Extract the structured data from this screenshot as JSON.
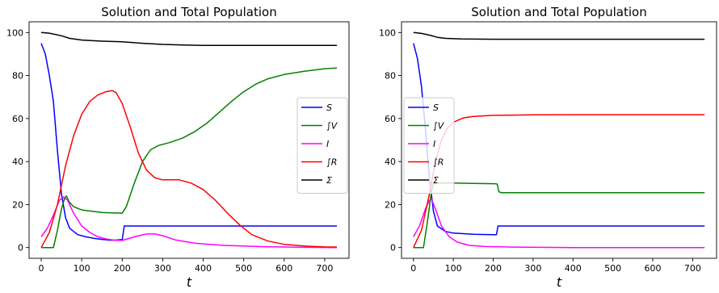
{
  "chart_data": [
    {
      "type": "line",
      "title": "Solution and Total Population",
      "xlabel": "t",
      "ylabel": "",
      "xlim": [
        -30,
        760
      ],
      "ylim": [
        -5,
        105
      ],
      "xticks": [
        0,
        100,
        200,
        300,
        400,
        500,
        600,
        700
      ],
      "yticks": [
        0,
        20,
        40,
        60,
        80,
        100
      ],
      "legend": "center-right",
      "series": [
        {
          "name": "S",
          "color": "#0000ff",
          "points": [
            [
              0,
              95
            ],
            [
              10,
              90
            ],
            [
              20,
              80
            ],
            [
              30,
              68
            ],
            [
              40,
              45
            ],
            [
              50,
              25
            ],
            [
              60,
              14
            ],
            [
              70,
              9
            ],
            [
              90,
              6
            ],
            [
              110,
              5
            ],
            [
              130,
              4.3
            ],
            [
              150,
              3.8
            ],
            [
              170,
              3.4
            ],
            [
              185,
              3.5
            ],
            [
              200,
              3.7
            ],
            [
              205,
              10
            ],
            [
              260,
              10
            ],
            [
              400,
              10
            ],
            [
              600,
              10
            ],
            [
              730,
              10
            ]
          ]
        },
        {
          "name": "∫V",
          "color": "#008000",
          "points": [
            [
              0,
              0
            ],
            [
              30,
              0
            ],
            [
              40,
              8
            ],
            [
              50,
              18
            ],
            [
              58,
              23
            ],
            [
              62,
              24
            ],
            [
              70,
              21
            ],
            [
              80,
              19
            ],
            [
              100,
              17.5
            ],
            [
              150,
              16.3
            ],
            [
              200,
              16
            ],
            [
              210,
              19
            ],
            [
              230,
              30
            ],
            [
              250,
              40
            ],
            [
              270,
              45.5
            ],
            [
              290,
              47.5
            ],
            [
              320,
              49
            ],
            [
              350,
              51
            ],
            [
              380,
              54
            ],
            [
              410,
              58
            ],
            [
              440,
              63
            ],
            [
              470,
              68
            ],
            [
              500,
              72.5
            ],
            [
              530,
              76
            ],
            [
              560,
              78.5
            ],
            [
              600,
              80.5
            ],
            [
              650,
              82
            ],
            [
              700,
              83.2
            ],
            [
              730,
              83.5
            ]
          ]
        },
        {
          "name": "I",
          "color": "#ff00ff",
          "points": [
            [
              0,
              5
            ],
            [
              15,
              9
            ],
            [
              30,
              15
            ],
            [
              45,
              22
            ],
            [
              55,
              23.5
            ],
            [
              65,
              22
            ],
            [
              80,
              16
            ],
            [
              100,
              10
            ],
            [
              120,
              7
            ],
            [
              140,
              5
            ],
            [
              160,
              4
            ],
            [
              180,
              3.4
            ],
            [
              200,
              3.3
            ],
            [
              230,
              5
            ],
            [
              260,
              6.3
            ],
            [
              280,
              6.3
            ],
            [
              300,
              5.5
            ],
            [
              330,
              3.6
            ],
            [
              380,
              2
            ],
            [
              450,
              1
            ],
            [
              550,
              0.4
            ],
            [
              650,
              0.1
            ],
            [
              730,
              0
            ]
          ]
        },
        {
          "name": "∫R",
          "color": "#ff0000",
          "points": [
            [
              0,
              0
            ],
            [
              20,
              7
            ],
            [
              40,
              20
            ],
            [
              60,
              38
            ],
            [
              80,
              52
            ],
            [
              100,
              62
            ],
            [
              120,
              68
            ],
            [
              140,
              71
            ],
            [
              160,
              72.5
            ],
            [
              175,
              73
            ],
            [
              185,
              72
            ],
            [
              200,
              67
            ],
            [
              220,
              56
            ],
            [
              240,
              44
            ],
            [
              260,
              36
            ],
            [
              280,
              32.5
            ],
            [
              300,
              31.5
            ],
            [
              340,
              31.5
            ],
            [
              370,
              30
            ],
            [
              400,
              27
            ],
            [
              430,
              22
            ],
            [
              460,
              16
            ],
            [
              490,
              10.5
            ],
            [
              520,
              6
            ],
            [
              560,
              3
            ],
            [
              600,
              1.5
            ],
            [
              650,
              0.7
            ],
            [
              700,
              0.3
            ],
            [
              730,
              0.2
            ]
          ]
        },
        {
          "name": "Σ",
          "color": "#000000",
          "points": [
            [
              0,
              100
            ],
            [
              20,
              99.7
            ],
            [
              50,
              98.5
            ],
            [
              70,
              97.3
            ],
            [
              100,
              96.5
            ],
            [
              150,
              96
            ],
            [
              200,
              95.7
            ],
            [
              250,
              95
            ],
            [
              300,
              94.5
            ],
            [
              350,
              94.2
            ],
            [
              400,
              94
            ],
            [
              500,
              94
            ],
            [
              600,
              94
            ],
            [
              730,
              94
            ]
          ]
        }
      ]
    },
    {
      "type": "line",
      "title": "Solution and Total Population",
      "xlabel": "t",
      "ylabel": "",
      "xlim": [
        -30,
        760
      ],
      "ylim": [
        -5,
        105
      ],
      "xticks": [
        0,
        100,
        200,
        300,
        400,
        500,
        600,
        700
      ],
      "yticks": [
        0,
        20,
        40,
        60,
        80,
        100
      ],
      "legend": "center-left",
      "series": [
        {
          "name": "S",
          "color": "#0000ff",
          "points": [
            [
              0,
              95
            ],
            [
              10,
              88
            ],
            [
              20,
              75
            ],
            [
              30,
              55
            ],
            [
              40,
              32
            ],
            [
              50,
              17
            ],
            [
              60,
              10
            ],
            [
              80,
              7.5
            ],
            [
              100,
              6.7
            ],
            [
              150,
              6.2
            ],
            [
              200,
              6
            ],
            [
              208,
              6
            ],
            [
              212,
              10
            ],
            [
              300,
              10
            ],
            [
              400,
              10
            ],
            [
              600,
              10
            ],
            [
              730,
              10
            ]
          ]
        },
        {
          "name": "∫V",
          "color": "#008000",
          "points": [
            [
              0,
              0
            ],
            [
              25,
              0
            ],
            [
              35,
              12
            ],
            [
              45,
              26
            ],
            [
              50,
              29.5
            ],
            [
              55,
              30
            ],
            [
              100,
              30
            ],
            [
              150,
              29.8
            ],
            [
              205,
              29.7
            ],
            [
              210,
              29.5
            ],
            [
              214,
              26
            ],
            [
              220,
              25.5
            ],
            [
              400,
              25.5
            ],
            [
              600,
              25.5
            ],
            [
              730,
              25.5
            ]
          ]
        },
        {
          "name": "I",
          "color": "#ff00ff",
          "points": [
            [
              0,
              5
            ],
            [
              15,
              10
            ],
            [
              30,
              18
            ],
            [
              40,
              22
            ],
            [
              45,
              22.5
            ],
            [
              55,
              18
            ],
            [
              70,
              10
            ],
            [
              90,
              5
            ],
            [
              110,
              2.5
            ],
            [
              140,
              1
            ],
            [
              180,
              0.5
            ],
            [
              250,
              0.2
            ],
            [
              400,
              0
            ],
            [
              730,
              0
            ]
          ]
        },
        {
          "name": "∫R",
          "color": "#ff0000",
          "points": [
            [
              0,
              0
            ],
            [
              20,
              8
            ],
            [
              40,
              25
            ],
            [
              55,
              40
            ],
            [
              70,
              50
            ],
            [
              85,
              55.5
            ],
            [
              100,
              58.3
            ],
            [
              125,
              60.3
            ],
            [
              150,
              61
            ],
            [
              200,
              61.5
            ],
            [
              300,
              61.7
            ],
            [
              400,
              61.8
            ],
            [
              730,
              61.8
            ]
          ]
        },
        {
          "name": "Σ",
          "color": "#000000",
          "points": [
            [
              0,
              100
            ],
            [
              20,
              99.6
            ],
            [
              40,
              98.8
            ],
            [
              60,
              97.8
            ],
            [
              80,
              97.3
            ],
            [
              120,
              97
            ],
            [
              200,
              96.9
            ],
            [
              400,
              96.9
            ],
            [
              730,
              96.9
            ]
          ]
        }
      ]
    }
  ]
}
